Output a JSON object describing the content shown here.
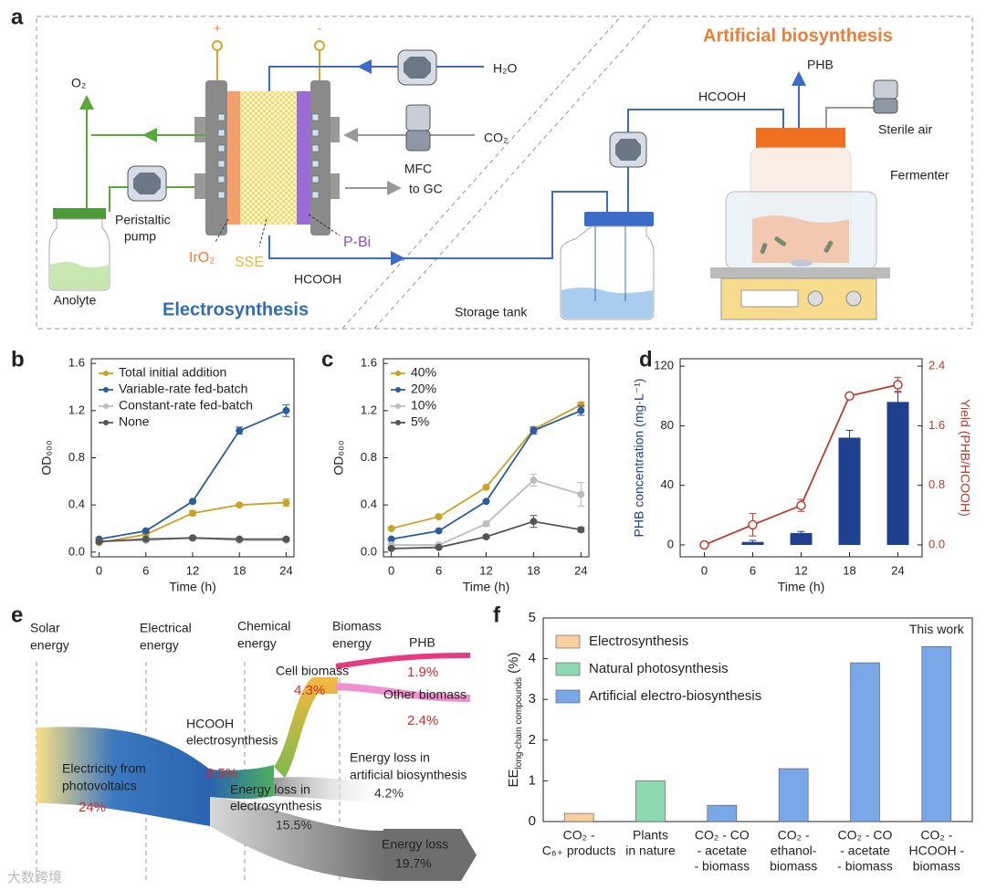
{
  "panels": [
    "a",
    "b",
    "c",
    "d",
    "e",
    "f"
  ],
  "diagram": {
    "artificial": "Artificial biosynthesis",
    "phb": "PHB",
    "h2o": "H₂O",
    "hcooh_top": "HCOOH",
    "sterile": "Sterile air",
    "co2": "CO₂",
    "mfc": "MFC",
    "fermenter": "Fermenter",
    "togc": "to GC",
    "o2": "O₂",
    "pump": [
      "Peristaltic",
      "pump"
    ],
    "iro2": "IrO₂",
    "sse": "SSE",
    "pbi": "P-Bi",
    "hcooh_bottom": "HCOOH",
    "anolyte": "Anolyte",
    "electro": "Electrosynthesis",
    "storage": "Storage tank",
    "plus": "+",
    "minus": "-"
  },
  "chart_data": [
    {
      "type": "line",
      "xlabel": "Time (h)",
      "ylabel": "OD₆₀₀",
      "x": [
        0,
        6,
        12,
        18,
        24
      ],
      "xlim": [
        -1,
        25
      ],
      "xticks": [
        0,
        6,
        12,
        18,
        24
      ],
      "ylim": [
        -0.04,
        1.64
      ],
      "yticks": [
        {
          "value": 0,
          "label": "0.0"
        },
        0.4,
        0.8,
        1.2,
        1.6
      ],
      "legend": "upper left",
      "series": [
        {
          "name": "Total initial addition",
          "color": "#c9a227",
          "values": [
            0.08,
            0.15,
            0.33,
            0.4,
            0.42
          ],
          "errors": [
            0.01,
            0.01,
            0.02,
            0.01,
            0.03
          ]
        },
        {
          "name": "Variable-rate fed-batch",
          "color": "#2a5d9f",
          "values": [
            0.11,
            0.18,
            0.43,
            1.03,
            1.2
          ],
          "errors": [
            0.01,
            0.01,
            0.01,
            0.03,
            0.05
          ]
        },
        {
          "name": "Constant-rate fed-batch",
          "color": "#bdbdbd",
          "values": [
            0.09,
            0.1,
            0.12,
            0.1,
            0.1
          ],
          "errors": [
            0.01,
            0.01,
            0.01,
            0.01,
            0.01
          ]
        },
        {
          "name": "None",
          "color": "#555555",
          "values": [
            0.09,
            0.11,
            0.12,
            0.11,
            0.11
          ],
          "errors": [
            0.01,
            0.01,
            0.01,
            0.01,
            0.01
          ]
        }
      ]
    },
    {
      "type": "line",
      "xlabel": "Time (h)",
      "ylabel": "OD₆₀₀",
      "x": [
        0,
        6,
        12,
        18,
        24
      ],
      "xlim": [
        -1,
        25
      ],
      "xticks": [
        0,
        6,
        12,
        18,
        24
      ],
      "ylim": [
        -0.04,
        1.64
      ],
      "yticks": [
        {
          "value": 0,
          "label": "0.0"
        },
        0.4,
        0.8,
        1.2,
        1.6
      ],
      "legend": "upper left",
      "series": [
        {
          "name": "40%",
          "color": "#c9a227",
          "values": [
            0.2,
            0.3,
            0.55,
            1.04,
            1.25
          ],
          "errors": [
            0.01,
            0.01,
            0.01,
            0.02,
            0.02
          ]
        },
        {
          "name": "20%",
          "color": "#2a5d9f",
          "values": [
            0.11,
            0.18,
            0.43,
            1.03,
            1.2
          ],
          "errors": [
            0.01,
            0.01,
            0.01,
            0.03,
            0.04
          ]
        },
        {
          "name": "10%",
          "color": "#bdbdbd",
          "values": [
            0.06,
            0.06,
            0.24,
            0.61,
            0.49
          ],
          "errors": [
            0.01,
            0.01,
            0.02,
            0.05,
            0.1
          ]
        },
        {
          "name": "5%",
          "color": "#555555",
          "values": [
            0.03,
            0.04,
            0.13,
            0.26,
            0.19
          ],
          "errors": [
            0.01,
            0.01,
            0.01,
            0.05,
            0.02
          ]
        }
      ]
    },
    {
      "type": "bar_line",
      "xlabel": "Time (h)",
      "ylabel": "PHB concentration (mg·L⁻¹)",
      "y2label": "Yield (PHB/HCOOH)",
      "x": [
        0,
        6,
        12,
        18,
        24
      ],
      "xlim": [
        -3,
        27
      ],
      "xticks": [
        0,
        6,
        12,
        18,
        24
      ],
      "ylim": [
        -8,
        125
      ],
      "yticks": [
        0,
        40,
        80,
        120
      ],
      "y2lim": [
        -0.16,
        2.5
      ],
      "y2ticks": [
        {
          "value": 0,
          "label": "0.0"
        },
        0.8,
        1.6,
        2.4
      ],
      "series": [
        {
          "type": "bar",
          "color": "#1f3f8f",
          "values": [
            0,
            2,
            8,
            72,
            96
          ],
          "errors": [
            0,
            1,
            1,
            5,
            7
          ]
        },
        {
          "type": "line",
          "axis": "y2",
          "marker": "open",
          "color": "#c0392b",
          "values": [
            0.0,
            0.27,
            0.53,
            2.0,
            2.15
          ],
          "errors": [
            0,
            0.15,
            0.08,
            0.03,
            0.1
          ]
        }
      ]
    },
    {
      "type": "bar",
      "ylabel": "EE",
      "ylabel_sub": "long-chain compounds",
      "ylabel_unit": "(%)",
      "categories": [
        [
          "CO₂ -",
          "C₆₊ products"
        ],
        [
          "Plants",
          "in nature"
        ],
        [
          "CO₂ - CO",
          "- acetate",
          "- biomass"
        ],
        [
          "CO₂ -",
          "ethanol-",
          "biomass"
        ],
        [
          "CO₂ - CO",
          "- acetate",
          "- biomass"
        ],
        [
          "CO₂ -",
          "HCOOH -",
          "biomass"
        ]
      ],
      "values": [
        0.2,
        1.0,
        0.4,
        1.3,
        3.9,
        4.3
      ],
      "colors": [
        "#f9cfa0",
        "#8fd9b0",
        "#7aa7e8",
        "#7aa7e8",
        "#7aa7e8",
        "#7aa7e8"
      ],
      "ylim": [
        0,
        5
      ],
      "yticks": [
        0,
        1,
        2,
        3,
        4,
        5
      ],
      "legend_entries": [
        {
          "name": "Electrosynthesis",
          "color": "#f9cfa0"
        },
        {
          "name": "Natural photosynthesis",
          "color": "#8fd9b0"
        },
        {
          "name": "Artificial electro-biosynthesis",
          "color": "#7aa7e8"
        }
      ],
      "annotation": "This work"
    }
  ],
  "sankey": {
    "stages": [
      [
        "Solar",
        "energy"
      ],
      [
        "Electrical",
        "energy"
      ],
      [
        "Chemical",
        "energy"
      ],
      [
        "Biomass",
        "energy"
      ]
    ],
    "phb": "PHB",
    "phb_pct": "1.9%",
    "cell": "Cell biomass",
    "cell_pct": "4.3%",
    "other": "Other biomass",
    "other_pct": "2.4%",
    "hcooh": [
      "HCOOH",
      "electrosynthesis"
    ],
    "hcooh_pct": "8.5%",
    "elec": [
      "Electricity from",
      "photovoltaics"
    ],
    "elec_pct": "24%",
    "loss_art": [
      "Energy loss in",
      "artificial biosynthesis"
    ],
    "loss_art_pct": "4.2%",
    "loss_el": [
      "Energy loss in",
      "electrosynthesis"
    ],
    "loss_el_pct": "15.5%",
    "loss": "Energy loss",
    "loss_pct": "19.7%"
  },
  "watermark": "大数跨境"
}
